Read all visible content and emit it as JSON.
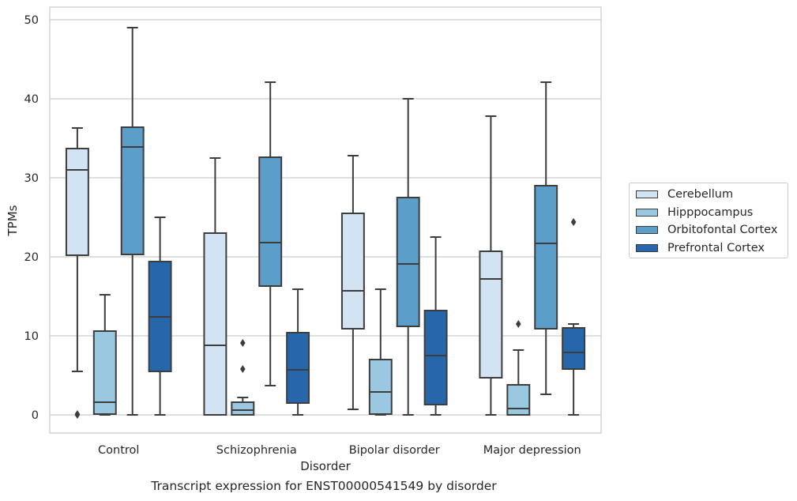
{
  "chart_data": {
    "type": "box",
    "xlabel": "Disorder",
    "ylabel": "TPMs",
    "ylim": [
      -2.3,
      51.6
    ],
    "yticks": [
      0,
      10,
      20,
      30,
      40,
      50
    ],
    "categories": [
      "Control",
      "Schizophrenia",
      "Bipolar disorder",
      "Major depression"
    ],
    "grid": "horizontal",
    "legend_position": "right",
    "series": [
      {
        "name": "Cerebellum",
        "color": "#d2e3f3",
        "boxes": [
          {
            "whisker_low": 5.5,
            "q1": 20.2,
            "median": 31.0,
            "q3": 33.7,
            "whisker_high": 36.3,
            "outliers": [
              0.0,
              0.1
            ]
          },
          {
            "whisker_low": 0.0,
            "q1": 0.0,
            "median": 8.8,
            "q3": 23.0,
            "whisker_high": 32.5,
            "outliers": []
          },
          {
            "whisker_low": 0.7,
            "q1": 10.9,
            "median": 15.7,
            "q3": 25.5,
            "whisker_high": 32.8,
            "outliers": []
          },
          {
            "whisker_low": 0.0,
            "q1": 4.7,
            "median": 17.2,
            "q3": 20.7,
            "whisker_high": 37.8,
            "outliers": []
          }
        ]
      },
      {
        "name": "Hipppocampus",
        "color": "#9ac8e0",
        "boxes": [
          {
            "whisker_low": 0.0,
            "q1": 0.1,
            "median": 1.6,
            "q3": 10.6,
            "whisker_high": 15.2,
            "outliers": []
          },
          {
            "whisker_low": 0.0,
            "q1": 0.0,
            "median": 0.6,
            "q3": 1.6,
            "whisker_high": 2.2,
            "outliers": [
              5.8,
              9.1
            ]
          },
          {
            "whisker_low": 0.0,
            "q1": 0.1,
            "median": 2.9,
            "q3": 7.0,
            "whisker_high": 15.9,
            "outliers": []
          },
          {
            "whisker_low": 0.0,
            "q1": 0.0,
            "median": 0.8,
            "q3": 3.8,
            "whisker_high": 8.2,
            "outliers": [
              11.5
            ]
          }
        ]
      },
      {
        "name": "Orbitofontal Cortex",
        "color": "#5a9ec9",
        "boxes": [
          {
            "whisker_low": 0.0,
            "q1": 20.3,
            "median": 33.9,
            "q3": 36.4,
            "whisker_high": 49.0,
            "outliers": []
          },
          {
            "whisker_low": 3.7,
            "q1": 16.3,
            "median": 21.8,
            "q3": 32.6,
            "whisker_high": 42.1,
            "outliers": []
          },
          {
            "whisker_low": 0.0,
            "q1": 11.2,
            "median": 19.1,
            "q3": 27.5,
            "whisker_high": 40.0,
            "outliers": []
          },
          {
            "whisker_low": 2.6,
            "q1": 10.9,
            "median": 21.7,
            "q3": 29.0,
            "whisker_high": 42.1,
            "outliers": []
          }
        ]
      },
      {
        "name": "Prefrontal Cortex",
        "color": "#2666ab",
        "boxes": [
          {
            "whisker_low": 0.0,
            "q1": 5.5,
            "median": 12.4,
            "q3": 19.4,
            "whisker_high": 25.0,
            "outliers": []
          },
          {
            "whisker_low": 0.0,
            "q1": 1.5,
            "median": 5.7,
            "q3": 10.4,
            "whisker_high": 15.9,
            "outliers": []
          },
          {
            "whisker_low": 0.0,
            "q1": 1.3,
            "median": 7.5,
            "q3": 13.2,
            "whisker_high": 22.5,
            "outliers": []
          },
          {
            "whisker_low": 0.0,
            "q1": 5.8,
            "median": 7.9,
            "q3": 11.0,
            "whisker_high": 11.5,
            "outliers": [
              24.4
            ]
          }
        ]
      }
    ]
  },
  "caption": "Transcript expression for ENST00000541549 by disorder"
}
